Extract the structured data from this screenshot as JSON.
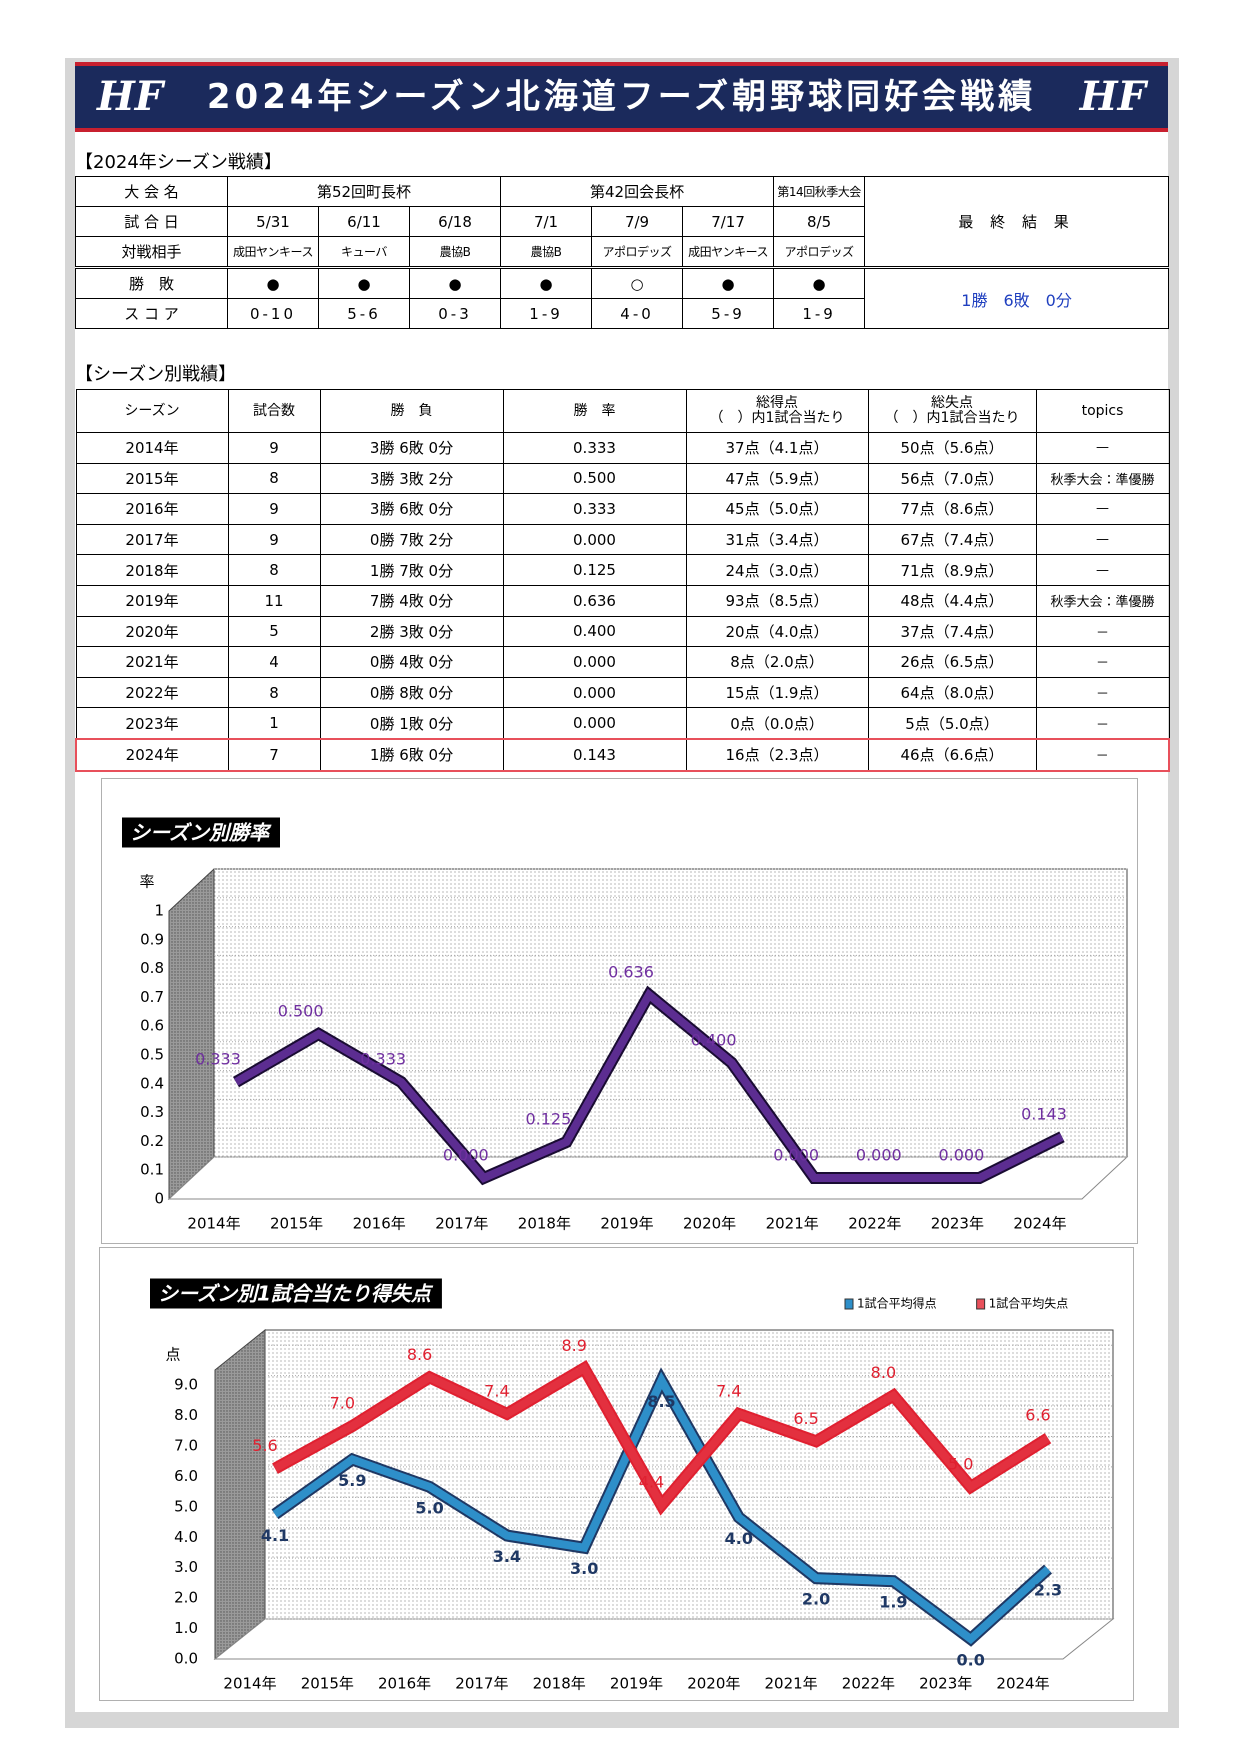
{
  "header": {
    "title": "2024年シーズン北海道フーズ朝野球同好会戦績",
    "logo": "HF"
  },
  "schedule": {
    "heading": "【2024年シーズン戦績】",
    "labels": [
      "大 会 名",
      "試 合 日",
      "対戦相手",
      "勝　敗",
      "ス コ ア"
    ],
    "tournaments": [
      "第52回町長杯",
      "第42回会長杯",
      "第14回秋季大会"
    ],
    "dates": [
      "5/31",
      "6/11",
      "6/18",
      "7/1",
      "7/9",
      "7/17",
      "8/5"
    ],
    "opponents": [
      "成田ヤンキース",
      "キューバ",
      "農協B",
      "農協B",
      "アポロデッズ",
      "成田ヤンキース",
      "アポロデッズ"
    ],
    "results": [
      "●",
      "●",
      "●",
      "●",
      "○",
      "●",
      "●"
    ],
    "scores": [
      "0-10",
      "5-6",
      "0-3",
      "1-9",
      "4-0",
      "5-9",
      "1-9"
    ],
    "final_label": "最 終 結 果",
    "final_result": "1勝　6敗　0分"
  },
  "seasons": {
    "heading": "【シーズン別戦績】",
    "headers": [
      "シーズン",
      "試合数",
      "勝　負",
      "勝　率",
      "総得点\n（　）内1試合当たり",
      "総失点\n（　）内1試合当たり",
      "topics"
    ],
    "rows": [
      [
        "2014年",
        "9",
        "3勝 6敗 0分",
        "0.333",
        "37点（4.1点）",
        "50点（5.6点）",
        "—"
      ],
      [
        "2015年",
        "8",
        "3勝 3敗 2分",
        "0.500",
        "47点（5.9点）",
        "56点（7.0点）",
        "秋季大会：準優勝"
      ],
      [
        "2016年",
        "9",
        "3勝 6敗 0分",
        "0.333",
        "45点（5.0点）",
        "77点（8.6点）",
        "—"
      ],
      [
        "2017年",
        "9",
        "0勝 7敗 2分",
        "0.000",
        "31点（3.4点）",
        "67点（7.4点）",
        "—"
      ],
      [
        "2018年",
        "8",
        "1勝 7敗 0分",
        "0.125",
        "24点（3.0点）",
        "71点（8.9点）",
        "—"
      ],
      [
        "2019年",
        "11",
        "7勝 4敗 0分",
        "0.636",
        "93点（8.5点）",
        "48点（4.4点）",
        "秋季大会：準優勝"
      ],
      [
        "2020年",
        "5",
        "2勝 3敗 0分",
        "0.400",
        "20点（4.0点）",
        "37点（7.4点）",
        "－"
      ],
      [
        "2021年",
        "4",
        "0勝 4敗 0分",
        "0.000",
        "8点（2.0点）",
        "26点（6.5点）",
        "－"
      ],
      [
        "2022年",
        "8",
        "0勝 8敗 0分",
        "0.000",
        "15点（1.9点）",
        "64点（8.0点）",
        "－"
      ],
      [
        "2023年",
        "1",
        "0勝 1敗 0分",
        "0.000",
        "0点（0.0点）",
        "5点（5.0点）",
        "－"
      ],
      [
        "2024年",
        "7",
        "1勝 6敗 0分",
        "0.143",
        "16点（2.3点）",
        "46点（6.6点）",
        "－"
      ]
    ]
  },
  "chart_data": [
    {
      "type": "line",
      "title": "シーズン別勝率",
      "y_label": "率",
      "categories": [
        "2014年",
        "2015年",
        "2016年",
        "2017年",
        "2018年",
        "2019年",
        "2020年",
        "2021年",
        "2022年",
        "2023年",
        "2024年"
      ],
      "values": [
        0.333,
        0.5,
        0.333,
        0,
        0.125,
        0.636,
        0.4,
        0,
        0,
        0,
        0.143
      ],
      "value_labels": [
        "0.333",
        "0.500",
        "0.333",
        "0.000",
        "0.125",
        "0.636",
        "0.400",
        "0.000",
        "0.000",
        "0.000",
        "0.143"
      ],
      "color": "#5c2d91",
      "ylim": [
        0,
        1
      ],
      "yticks": [
        0,
        0.1,
        0.2,
        0.3,
        0.4,
        0.5,
        0.6,
        0.7,
        0.8,
        0.9,
        1
      ],
      "grid": true
    },
    {
      "type": "line",
      "title": "シーズン別1試合当たり得失点",
      "y_label": "点",
      "categories": [
        "2014年",
        "2015年",
        "2016年",
        "2017年",
        "2018年",
        "2019年",
        "2020年",
        "2021年",
        "2022年",
        "2023年",
        "2024年"
      ],
      "series": [
        {
          "name": "1試合平均得点",
          "color": "#2e8fc9",
          "values": [
            4.1,
            5.9,
            5.0,
            3.4,
            3.0,
            8.5,
            4.0,
            2.0,
            1.9,
            0.0,
            2.3
          ],
          "value_labels": [
            "4.1",
            "5.9",
            "5.0",
            "3.4",
            "3.0",
            "8.5",
            "4.0",
            "2.0",
            "1.9",
            "0.0",
            "2.3"
          ]
        },
        {
          "name": "1試合平均失点",
          "color": "#e8505b",
          "values": [
            5.6,
            7.0,
            8.6,
            7.4,
            8.9,
            4.4,
            7.4,
            6.5,
            8.0,
            5.0,
            6.6
          ],
          "value_labels": [
            "5.6",
            "7.0",
            "8.6",
            "7.4",
            "8.9",
            "4.4",
            "7.4",
            "6.5",
            "8.0",
            "5.0",
            "6.6"
          ]
        }
      ],
      "ylim": [
        0,
        9.5
      ],
      "yticks": [
        {
          "value": 0,
          "label": "0.0"
        },
        {
          "value": 1,
          "label": "1.0"
        },
        {
          "value": 2,
          "label": "2.0"
        },
        {
          "value": 3,
          "label": "3.0"
        },
        {
          "value": 4,
          "label": "4.0"
        },
        {
          "value": 5,
          "label": "5.0"
        },
        {
          "value": 6,
          "label": "6.0"
        },
        {
          "value": 7,
          "label": "7.0"
        },
        {
          "value": 8,
          "label": "8.0"
        },
        {
          "value": 9,
          "label": "9.0"
        }
      ],
      "grid": true,
      "legend": "top-right"
    }
  ]
}
